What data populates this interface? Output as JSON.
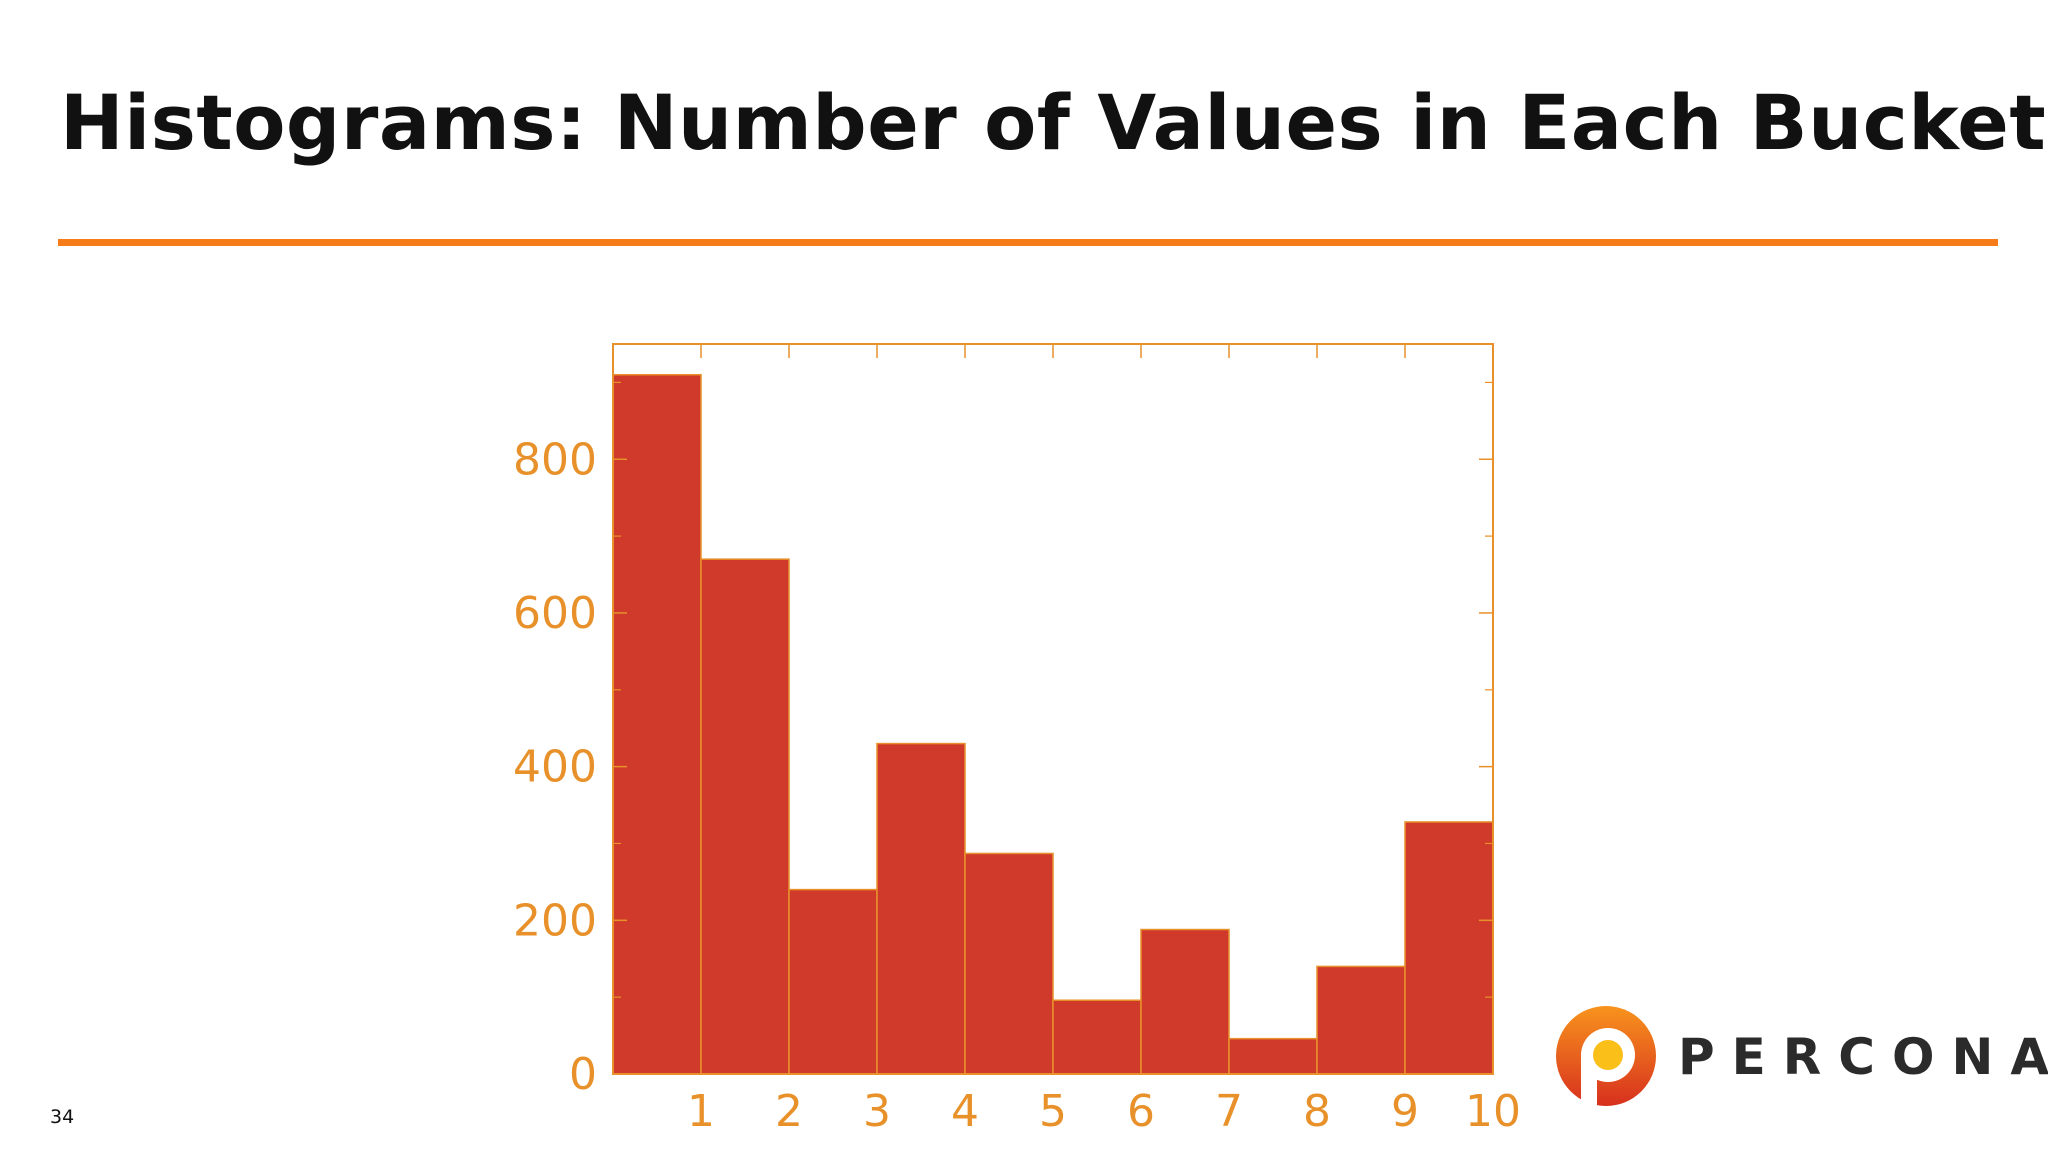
{
  "slide": {
    "title": "Histograms: Number of Values in Each Bucket",
    "page_number": "34"
  },
  "logo": {
    "text": "PERCONA",
    "icon": "percona-logo-icon"
  },
  "colors": {
    "accent": "#f57c18",
    "bar_fill": "#d03a2a",
    "axis": "#e8912a"
  },
  "chart_data": {
    "type": "bar",
    "title": "",
    "xlabel": "",
    "ylabel": "",
    "bins": [
      {
        "from": 0,
        "to": 1,
        "value": 910
      },
      {
        "from": 1,
        "to": 2,
        "value": 670
      },
      {
        "from": 2,
        "to": 3,
        "value": 240
      },
      {
        "from": 3,
        "to": 4,
        "value": 430
      },
      {
        "from": 4,
        "to": 5,
        "value": 287
      },
      {
        "from": 5,
        "to": 6,
        "value": 96
      },
      {
        "from": 6,
        "to": 7,
        "value": 188
      },
      {
        "from": 7,
        "to": 8,
        "value": 46
      },
      {
        "from": 8,
        "to": 9,
        "value": 140
      },
      {
        "from": 9,
        "to": 10,
        "value": 328
      }
    ],
    "xlim": [
      0,
      10
    ],
    "ylim": [
      0,
      950
    ],
    "x_ticks": [
      1,
      2,
      3,
      4,
      5,
      6,
      7,
      8,
      9,
      10
    ],
    "y_ticks": [
      0,
      200,
      400,
      600,
      800
    ],
    "grid": false,
    "legend": "none"
  }
}
